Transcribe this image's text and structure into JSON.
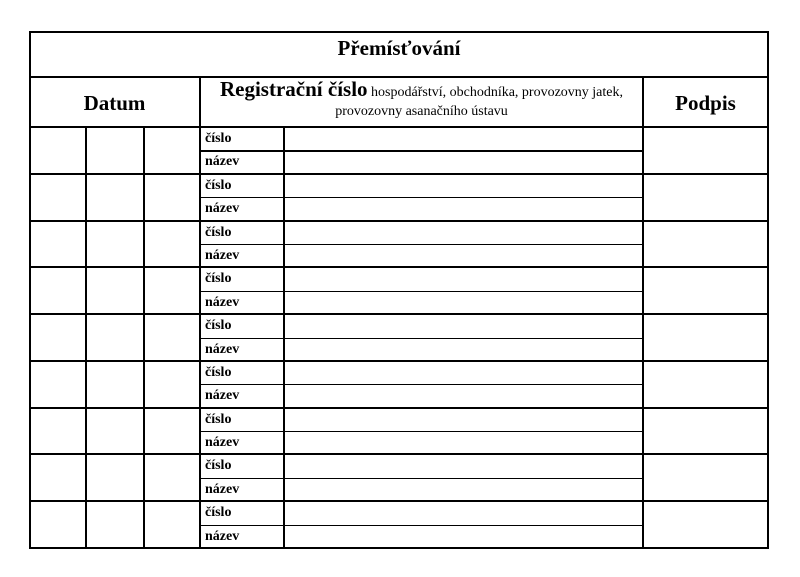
{
  "title": "Přemísťování",
  "headers": {
    "datum": "Datum",
    "registracni_big": "Registrační číslo",
    "registracni_small": " hospodářství, obchodníka, provozovny jatek, provozovny asanačního ústavu",
    "podpis": "Podpis"
  },
  "rows": [
    {
      "cislo": "číslo",
      "nazev": "název"
    },
    {
      "cislo": "číslo",
      "nazev": "název"
    },
    {
      "cislo": "číslo",
      "nazev": "název"
    },
    {
      "cislo": "číslo",
      "nazev": "název"
    },
    {
      "cislo": "číslo",
      "nazev": "název"
    },
    {
      "cislo": "číslo",
      "nazev": "název"
    },
    {
      "cislo": "číslo",
      "nazev": "název"
    },
    {
      "cislo": "číslo",
      "nazev": "název"
    },
    {
      "cislo": "číslo",
      "nazev": "název"
    }
  ]
}
